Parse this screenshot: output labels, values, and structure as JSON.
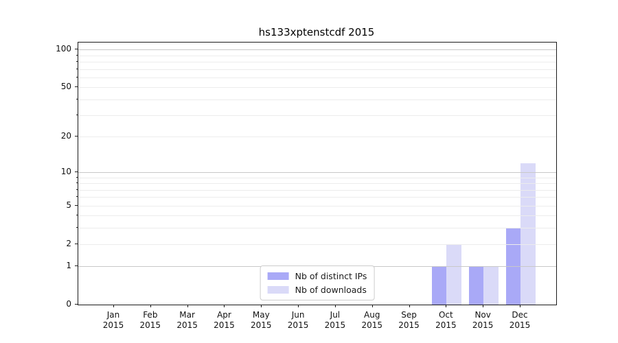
{
  "chart_data": {
    "type": "bar",
    "title": "hs133xptenstcdf 2015",
    "categories": [
      {
        "month": "Jan",
        "year": "2015"
      },
      {
        "month": "Feb",
        "year": "2015"
      },
      {
        "month": "Mar",
        "year": "2015"
      },
      {
        "month": "Apr",
        "year": "2015"
      },
      {
        "month": "May",
        "year": "2015"
      },
      {
        "month": "Jun",
        "year": "2015"
      },
      {
        "month": "Jul",
        "year": "2015"
      },
      {
        "month": "Aug",
        "year": "2015"
      },
      {
        "month": "Sep",
        "year": "2015"
      },
      {
        "month": "Oct",
        "year": "2015"
      },
      {
        "month": "Nov",
        "year": "2015"
      },
      {
        "month": "Dec",
        "year": "2015"
      }
    ],
    "series": [
      {
        "name": "Nb of distinct IPs",
        "color": "#a9a9f7",
        "values": [
          0,
          0,
          0,
          0,
          0,
          0,
          0,
          0,
          0,
          1,
          1,
          3
        ]
      },
      {
        "name": "Nb of downloads",
        "color": "#dadaf8",
        "values": [
          0,
          0,
          0,
          0,
          0,
          0,
          0,
          0,
          0,
          2,
          1,
          12
        ]
      }
    ],
    "y_axis": {
      "scale": "log1p",
      "min": 0,
      "max": 114,
      "major_ticks": [
        0,
        1,
        2,
        5,
        10,
        20,
        50,
        100
      ],
      "minor_ticks": [
        3,
        4,
        6,
        7,
        8,
        9,
        30,
        40,
        60,
        70,
        80,
        90
      ],
      "decade_lines": [
        1,
        10,
        100
      ]
    },
    "grid": "horizontal",
    "legend_position": "lower center"
  },
  "colors": {
    "spine": "#1a1a1a",
    "grid_decade": "#c8c8c8",
    "grid_minor": "#ececec",
    "text": "#111111",
    "legend_border": "#cccccc",
    "legend_background": "#ffffff"
  }
}
